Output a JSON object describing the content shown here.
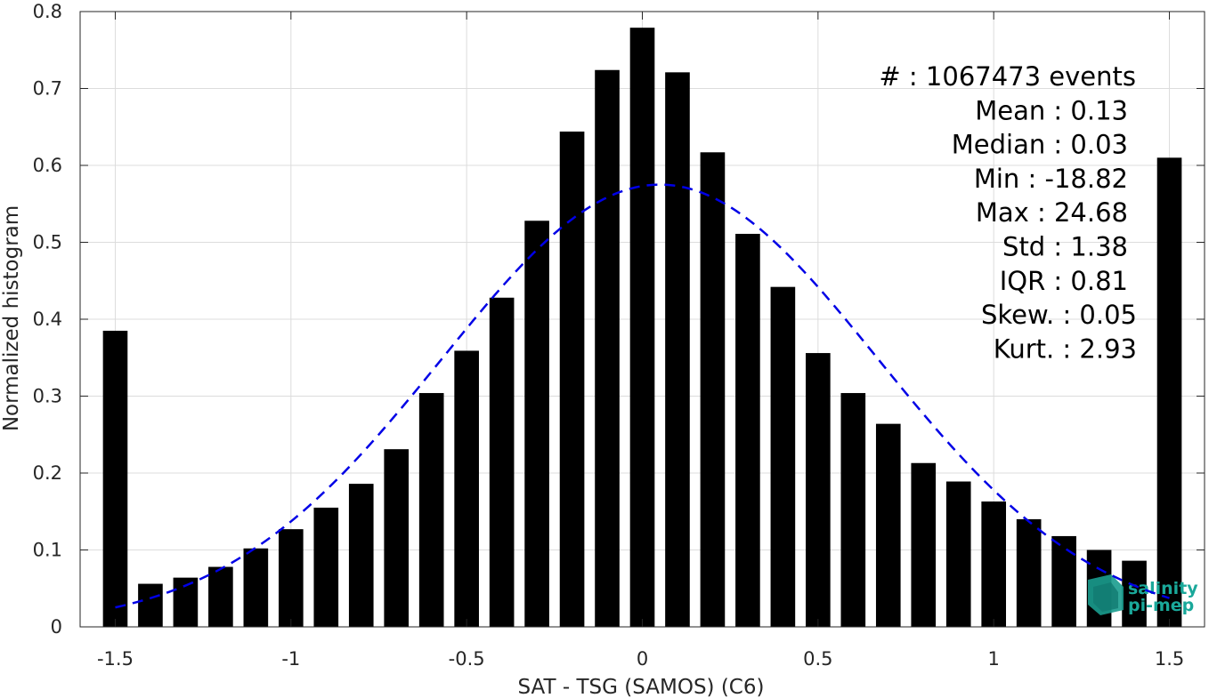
{
  "chart_data": {
    "type": "bar",
    "xlabel": "SAT - TSG (SAMOS) (C6)",
    "ylabel": "Normalized histogram",
    "xlim": [
      -1.6,
      1.6
    ],
    "ylim": [
      0,
      0.8
    ],
    "xticks": [
      -1.5,
      -1,
      -0.5,
      0,
      0.5,
      1,
      1.5
    ],
    "xtick_labels": [
      "-1.5",
      "-1",
      "-0.5",
      "0",
      "0.5",
      "1",
      "1.5"
    ],
    "yticks": [
      0,
      0.1,
      0.2,
      0.3,
      0.4,
      0.5,
      0.6,
      0.7,
      0.8
    ],
    "ytick_labels": [
      "0",
      "0.1",
      "0.2",
      "0.3",
      "0.4",
      "0.5",
      "0.6",
      "0.7",
      "0.8"
    ],
    "grid": true,
    "bar_color": "#000000",
    "bar_width": 0.07,
    "x": [
      -1.5,
      -1.4,
      -1.3,
      -1.2,
      -1.1,
      -1.0,
      -0.9,
      -0.8,
      -0.7,
      -0.6,
      -0.5,
      -0.4,
      -0.3,
      -0.2,
      -0.1,
      0.0,
      0.1,
      0.2,
      0.3,
      0.4,
      0.5,
      0.6,
      0.7,
      0.8,
      0.9,
      1.0,
      1.1,
      1.2,
      1.3,
      1.4,
      1.5
    ],
    "values": [
      0.385,
      0.056,
      0.064,
      0.078,
      0.102,
      0.127,
      0.155,
      0.186,
      0.231,
      0.304,
      0.359,
      0.428,
      0.528,
      0.644,
      0.724,
      0.779,
      0.721,
      0.617,
      0.511,
      0.442,
      0.356,
      0.304,
      0.264,
      0.213,
      0.189,
      0.163,
      0.14,
      0.118,
      0.1,
      0.086,
      0.61
    ],
    "fit_curve": {
      "type": "gaussian",
      "style": "dashed",
      "color": "#0000e6",
      "mean": 0.05,
      "peak": 0.575,
      "sigma": 0.62,
      "x_range": [
        -1.5,
        1.5
      ]
    },
    "annotations": [
      {
        "label": "#  :",
        "value": "1067473 events"
      },
      {
        "label": "Mean :",
        "value": "0.13"
      },
      {
        "label": "Median :",
        "value": "0.03"
      },
      {
        "label": "Min :",
        "value": "-18.82"
      },
      {
        "label": "Max :",
        "value": "24.68"
      },
      {
        "label": "Std :",
        "value": "1.38"
      },
      {
        "label": "IQR :",
        "value": "0.81"
      },
      {
        "label": "Skew. :",
        "value": "0.05"
      },
      {
        "label": "Kurt. :",
        "value": "2.93"
      }
    ]
  },
  "logo": {
    "line1": "salinity",
    "line2": "pi-mep",
    "color": "#1aa89a"
  }
}
